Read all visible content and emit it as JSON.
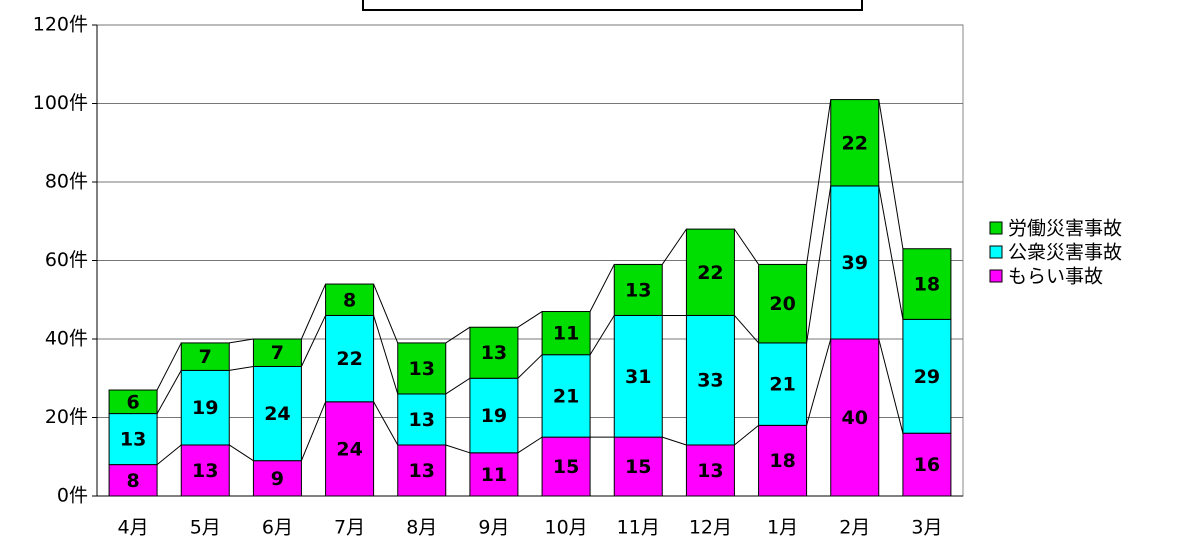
{
  "chart_data": {
    "type": "stacked-bar",
    "categories": [
      "4月",
      "5月",
      "6月",
      "7月",
      "8月",
      "9月",
      "10月",
      "11月",
      "12月",
      "1月",
      "2月",
      "3月"
    ],
    "series": [
      {
        "name": "もらい事故",
        "color": "#ff00ff",
        "values": [
          8,
          13,
          9,
          24,
          13,
          11,
          15,
          15,
          13,
          18,
          40,
          16
        ]
      },
      {
        "name": "公衆災害事故",
        "color": "#00ffff",
        "values": [
          13,
          19,
          24,
          22,
          13,
          19,
          21,
          31,
          33,
          21,
          39,
          29
        ]
      },
      {
        "name": "労働災害事故",
        "color": "#00dd00",
        "values": [
          6,
          7,
          7,
          8,
          13,
          13,
          11,
          13,
          22,
          20,
          22,
          18
        ]
      }
    ],
    "ylim": [
      0,
      120
    ],
    "yticks": [
      {
        "value": 0,
        "label": "0件"
      },
      {
        "value": 20,
        "label": "20件"
      },
      {
        "value": 40,
        "label": "40件"
      },
      {
        "value": 60,
        "label": "60件"
      },
      {
        "value": 80,
        "label": "80件"
      },
      {
        "value": 100,
        "label": "100件"
      },
      {
        "value": 120,
        "label": "120件"
      }
    ],
    "grid": true,
    "legend": "right"
  }
}
